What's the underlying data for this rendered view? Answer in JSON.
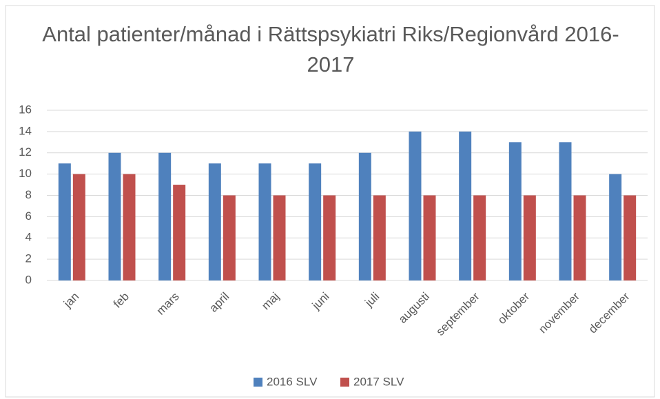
{
  "chart_data": {
    "type": "bar",
    "title": "Antal patienter/månad i Rättspsykiatri Riks/Regionvård 2016-2017",
    "categories": [
      "jan",
      "feb",
      "mars",
      "april",
      "maj",
      "juni",
      "juli",
      "augusti",
      "september",
      "oktober",
      "november",
      "december"
    ],
    "series": [
      {
        "name": "2016 SLV",
        "color": "#4f81bd",
        "values": [
          11,
          12,
          12,
          11,
          11,
          11,
          12,
          14,
          14,
          13,
          13,
          10
        ]
      },
      {
        "name": "2017 SLV",
        "color": "#c0504d",
        "values": [
          10,
          10,
          9,
          8,
          8,
          8,
          8,
          8,
          8,
          8,
          8,
          8
        ]
      }
    ],
    "ylim": [
      0,
      16
    ],
    "yticks": [
      0,
      2,
      4,
      6,
      8,
      10,
      12,
      14,
      16
    ],
    "grid": true,
    "legend": "bottom"
  }
}
